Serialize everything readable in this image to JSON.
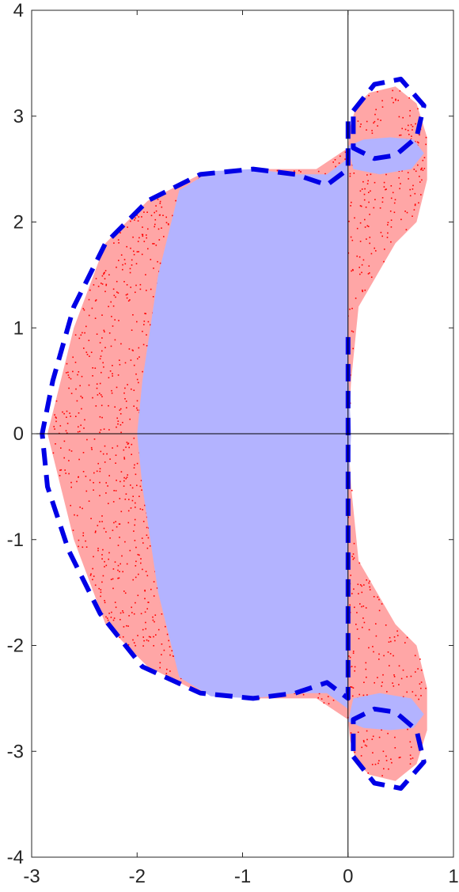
{
  "chart_data": {
    "type": "scatter",
    "title": "",
    "xlabel": "",
    "ylabel": "",
    "xlim": [
      -3,
      1
    ],
    "ylim": [
      -4,
      4
    ],
    "xticks": [
      "-3",
      "-2",
      "-1",
      "0",
      "1"
    ],
    "yticks": [
      "4",
      "3",
      "2",
      "1",
      "0",
      "-1",
      "-2",
      "-3",
      "-4"
    ],
    "grid": false,
    "legend": "none",
    "colors": {
      "region_fill": "#b3b3ff",
      "scatter": "#ff0000",
      "boundary": "#0000e6",
      "axes": "#000000"
    },
    "region": {
      "name": "",
      "description_points": [
        [
          0.0,
          2.6
        ],
        [
          -0.2,
          2.45
        ],
        [
          -0.5,
          2.45
        ],
        [
          -0.9,
          2.5
        ],
        [
          -1.3,
          2.48
        ],
        [
          -1.6,
          2.3
        ],
        [
          -1.8,
          1.5
        ],
        [
          -1.95,
          0.5
        ],
        [
          -2.0,
          0.0
        ],
        [
          -1.95,
          -0.5
        ],
        [
          -1.8,
          -1.5
        ],
        [
          -1.6,
          -2.3
        ],
        [
          -1.3,
          -2.48
        ],
        [
          -0.9,
          -2.5
        ],
        [
          -0.5,
          -2.45
        ],
        [
          -0.2,
          -2.45
        ],
        [
          0.0,
          -2.6
        ],
        [
          0.0,
          -0.6
        ],
        [
          0.03,
          0.0
        ],
        [
          0.0,
          0.6
        ]
      ],
      "top_cap": [
        [
          0.0,
          2.72
        ],
        [
          0.15,
          2.78
        ],
        [
          0.4,
          2.8
        ],
        [
          0.62,
          2.78
        ],
        [
          0.72,
          2.65
        ],
        [
          0.6,
          2.5
        ],
        [
          0.3,
          2.45
        ],
        [
          0.05,
          2.5
        ]
      ]
    },
    "scatter_envelopes": [
      {
        "name": "",
        "outline": [
          [
            0.0,
            2.7
          ],
          [
            0.02,
            2.9
          ],
          [
            0.08,
            3.1
          ],
          [
            0.2,
            3.22
          ],
          [
            0.45,
            3.28
          ],
          [
            0.65,
            3.12
          ],
          [
            0.75,
            2.8
          ],
          [
            0.75,
            2.4
          ],
          [
            0.65,
            2.0
          ],
          [
            0.45,
            1.8
          ],
          [
            0.1,
            1.2
          ],
          [
            0.03,
            0.5
          ],
          [
            0.0,
            0.0
          ],
          [
            0.03,
            -0.5
          ],
          [
            0.1,
            -1.2
          ],
          [
            0.45,
            -1.8
          ],
          [
            0.65,
            -2.0
          ],
          [
            0.75,
            -2.4
          ],
          [
            0.75,
            -2.8
          ],
          [
            0.65,
            -3.12
          ],
          [
            0.45,
            -3.28
          ],
          [
            0.2,
            -3.22
          ],
          [
            0.08,
            -3.1
          ],
          [
            0.02,
            -2.9
          ],
          [
            0.0,
            -2.7
          ],
          [
            -0.3,
            -2.5
          ],
          [
            -0.9,
            -2.5
          ],
          [
            -1.4,
            -2.45
          ],
          [
            -1.9,
            -2.2
          ],
          [
            -2.3,
            -1.8
          ],
          [
            -2.6,
            -1.0
          ],
          [
            -2.8,
            -0.2
          ],
          [
            -2.85,
            0.0
          ],
          [
            -2.8,
            0.2
          ],
          [
            -2.6,
            1.0
          ],
          [
            -2.3,
            1.8
          ],
          [
            -1.9,
            2.2
          ],
          [
            -1.4,
            2.45
          ],
          [
            -0.9,
            2.5
          ],
          [
            -0.3,
            2.5
          ]
        ]
      }
    ],
    "boundary_curves": [
      {
        "name": "",
        "style": "dashed",
        "points": [
          [
            0.0,
            2.95
          ],
          [
            0.0,
            2.5
          ],
          [
            -0.2,
            2.35
          ],
          [
            -0.5,
            2.45
          ],
          [
            -0.9,
            2.5
          ],
          [
            -1.4,
            2.45
          ],
          [
            -1.9,
            2.2
          ],
          [
            -2.3,
            1.8
          ],
          [
            -2.6,
            1.2
          ],
          [
            -2.8,
            0.5
          ],
          [
            -2.9,
            0.0
          ],
          [
            -2.85,
            -0.5
          ],
          [
            -2.65,
            -1.1
          ],
          [
            -2.35,
            -1.7
          ],
          [
            -1.95,
            -2.2
          ],
          [
            -1.4,
            -2.45
          ],
          [
            -0.9,
            -2.5
          ],
          [
            -0.5,
            -2.45
          ],
          [
            -0.2,
            -2.35
          ],
          [
            0.0,
            -2.5
          ],
          [
            0.0,
            -1.0
          ],
          [
            0.0,
            0.0
          ],
          [
            0.0,
            1.0
          ]
        ]
      },
      {
        "name": "",
        "style": "dashed",
        "points": [
          [
            0.05,
            3.05
          ],
          [
            0.25,
            3.3
          ],
          [
            0.5,
            3.35
          ],
          [
            0.72,
            3.1
          ],
          [
            0.65,
            2.8
          ],
          [
            0.45,
            2.63
          ],
          [
            0.25,
            2.6
          ],
          [
            0.05,
            2.7
          ]
        ]
      },
      {
        "name": "",
        "style": "dashed",
        "points": [
          [
            0.05,
            -3.05
          ],
          [
            0.25,
            -3.3
          ],
          [
            0.5,
            -3.35
          ],
          [
            0.72,
            -3.1
          ],
          [
            0.65,
            -2.8
          ],
          [
            0.45,
            -2.63
          ],
          [
            0.25,
            -2.6
          ],
          [
            0.05,
            -2.7
          ]
        ]
      }
    ]
  }
}
